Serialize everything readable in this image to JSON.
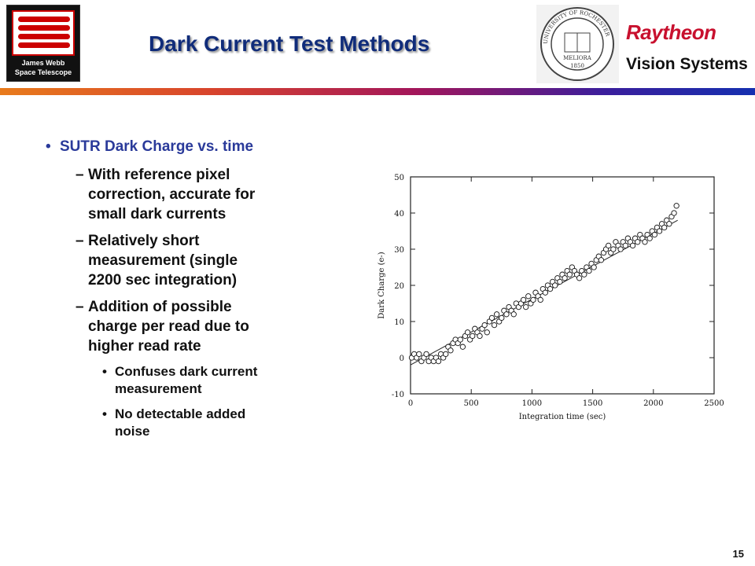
{
  "header": {
    "title": "Dark Current Test Methods",
    "jwst_logo_text": [
      "James Webb",
      "Space Telescope"
    ],
    "seal_text": [
      "UNIVERSITY OF ROCHESTER",
      "MELIORA",
      "1850"
    ],
    "raytheon_label": "Raytheon",
    "vision_label": "Vision Systems"
  },
  "colors": {
    "title": "#102c7a",
    "bullet_level1": "#2a3a9a",
    "raytheon_red": "#c8102e",
    "bar_gradient": [
      "#e87b1c",
      "#a3165a",
      "#1530b0"
    ]
  },
  "bullets": {
    "main": "SUTR Dark Charge vs. time",
    "subs": [
      {
        "dash": "–",
        "lines": [
          "With reference pixel",
          "correction, accurate for",
          "small dark currents"
        ]
      },
      {
        "dash": "–",
        "lines": [
          "Relatively short",
          "measurement (single",
          "2200 sec integration)"
        ]
      },
      {
        "dash": "–",
        "lines": [
          "Addition of possible",
          "charge per read due to",
          "higher read rate"
        ]
      }
    ],
    "subsubs": [
      {
        "marker": "•",
        "lines": [
          "Confuses dark current",
          "measurement"
        ]
      },
      {
        "marker": "•",
        "lines": [
          "No detectable added",
          "noise"
        ]
      }
    ]
  },
  "page_number": "15",
  "chart_data": {
    "type": "scatter",
    "xlabel": "Integration time (sec)",
    "ylabel": "Dark Charge (e-)",
    "xlim": [
      0,
      2500
    ],
    "ylim": [
      -10,
      50
    ],
    "x_ticks": [
      0,
      500,
      1000,
      1500,
      2000,
      2500
    ],
    "y_ticks": [
      -10,
      0,
      10,
      20,
      30,
      40,
      50
    ],
    "grid": false,
    "legend": "none",
    "fit_line": {
      "x": [
        0,
        2200
      ],
      "y": [
        -2,
        38
      ]
    },
    "points": [
      [
        10,
        0
      ],
      [
        30,
        1
      ],
      [
        50,
        0
      ],
      [
        70,
        1
      ],
      [
        90,
        -1
      ],
      [
        110,
        0
      ],
      [
        130,
        1
      ],
      [
        150,
        -1
      ],
      [
        170,
        0
      ],
      [
        190,
        -1
      ],
      [
        210,
        0
      ],
      [
        230,
        -1
      ],
      [
        250,
        1
      ],
      [
        270,
        0
      ],
      [
        290,
        1
      ],
      [
        310,
        3
      ],
      [
        330,
        2
      ],
      [
        350,
        4
      ],
      [
        370,
        5
      ],
      [
        390,
        4
      ],
      [
        410,
        5
      ],
      [
        430,
        3
      ],
      [
        450,
        6
      ],
      [
        470,
        7
      ],
      [
        490,
        5
      ],
      [
        510,
        6
      ],
      [
        530,
        8
      ],
      [
        550,
        7
      ],
      [
        570,
        6
      ],
      [
        590,
        8
      ],
      [
        610,
        9
      ],
      [
        630,
        7
      ],
      [
        650,
        10
      ],
      [
        670,
        11
      ],
      [
        690,
        9
      ],
      [
        710,
        12
      ],
      [
        730,
        10
      ],
      [
        750,
        11
      ],
      [
        770,
        13
      ],
      [
        790,
        12
      ],
      [
        810,
        14
      ],
      [
        830,
        13
      ],
      [
        850,
        12
      ],
      [
        870,
        15
      ],
      [
        890,
        14
      ],
      [
        910,
        15
      ],
      [
        930,
        16
      ],
      [
        950,
        14
      ],
      [
        970,
        17
      ],
      [
        990,
        15
      ],
      [
        1010,
        16
      ],
      [
        1030,
        18
      ],
      [
        1050,
        17
      ],
      [
        1070,
        16
      ],
      [
        1090,
        19
      ],
      [
        1110,
        18
      ],
      [
        1130,
        20
      ],
      [
        1150,
        19
      ],
      [
        1170,
        21
      ],
      [
        1190,
        20
      ],
      [
        1210,
        22
      ],
      [
        1230,
        21
      ],
      [
        1250,
        23
      ],
      [
        1270,
        22
      ],
      [
        1290,
        24
      ],
      [
        1310,
        23
      ],
      [
        1330,
        25
      ],
      [
        1350,
        24
      ],
      [
        1370,
        23
      ],
      [
        1390,
        22
      ],
      [
        1410,
        24
      ],
      [
        1430,
        23
      ],
      [
        1450,
        25
      ],
      [
        1470,
        24
      ],
      [
        1490,
        26
      ],
      [
        1510,
        25
      ],
      [
        1530,
        27
      ],
      [
        1550,
        28
      ],
      [
        1570,
        27
      ],
      [
        1590,
        29
      ],
      [
        1610,
        30
      ],
      [
        1630,
        31
      ],
      [
        1650,
        29
      ],
      [
        1670,
        30
      ],
      [
        1690,
        32
      ],
      [
        1710,
        31
      ],
      [
        1730,
        30
      ],
      [
        1750,
        32
      ],
      [
        1770,
        31
      ],
      [
        1790,
        33
      ],
      [
        1810,
        32
      ],
      [
        1830,
        31
      ],
      [
        1850,
        33
      ],
      [
        1870,
        32
      ],
      [
        1890,
        34
      ],
      [
        1910,
        33
      ],
      [
        1930,
        32
      ],
      [
        1950,
        34
      ],
      [
        1970,
        33
      ],
      [
        1990,
        35
      ],
      [
        2010,
        34
      ],
      [
        2030,
        36
      ],
      [
        2050,
        35
      ],
      [
        2070,
        37
      ],
      [
        2090,
        36
      ],
      [
        2110,
        38
      ],
      [
        2130,
        37
      ],
      [
        2150,
        39
      ],
      [
        2170,
        40
      ],
      [
        2190,
        42
      ]
    ]
  }
}
